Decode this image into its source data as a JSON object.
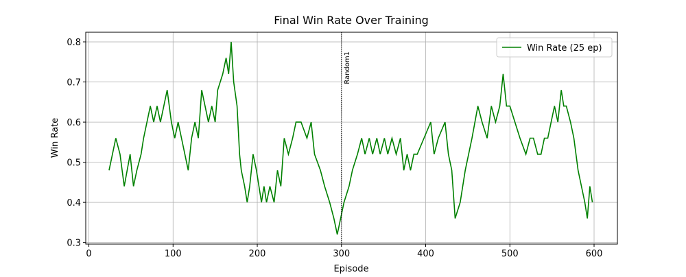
{
  "chart_data": {
    "type": "line",
    "title": "Final Win Rate Over Training",
    "x_label": "Episode",
    "y_label": "Win Rate",
    "x": [
      24,
      28,
      32,
      37,
      42,
      49,
      53,
      57,
      62,
      65,
      69,
      73,
      77,
      81,
      85,
      89,
      93,
      98,
      102,
      106,
      110,
      114,
      118,
      122,
      126,
      130,
      134,
      138,
      142,
      146,
      150,
      153,
      159,
      163,
      166,
      169,
      172,
      176,
      179,
      181,
      185,
      188,
      191,
      195,
      199,
      205,
      208,
      211,
      215,
      220,
      224,
      228,
      232,
      237,
      242,
      246,
      252,
      259,
      264,
      268,
      275,
      280,
      286,
      291,
      295,
      299,
      303,
      309,
      313,
      319,
      324,
      328,
      333,
      337,
      342,
      346,
      351,
      355,
      360,
      365,
      370,
      374,
      378,
      382,
      386,
      390,
      398,
      406,
      410,
      415,
      423,
      427,
      431,
      435,
      441,
      447,
      451,
      455,
      462,
      467,
      473,
      478,
      483,
      488,
      492,
      496,
      500,
      506,
      512,
      519,
      524,
      528,
      533,
      537,
      541,
      545,
      549,
      553,
      557,
      561,
      564,
      567,
      572,
      576,
      581,
      585,
      589,
      592,
      595,
      598
    ],
    "series": [
      {
        "name": "Win Rate (25 ep)",
        "color": "#008000",
        "values": [
          0.48,
          0.52,
          0.56,
          0.52,
          0.44,
          0.52,
          0.44,
          0.48,
          0.52,
          0.56,
          0.6,
          0.64,
          0.6,
          0.64,
          0.6,
          0.64,
          0.68,
          0.6,
          0.56,
          0.6,
          0.56,
          0.52,
          0.48,
          0.56,
          0.6,
          0.56,
          0.68,
          0.64,
          0.6,
          0.64,
          0.6,
          0.68,
          0.72,
          0.76,
          0.72,
          0.8,
          0.7,
          0.64,
          0.52,
          0.48,
          0.44,
          0.4,
          0.44,
          0.52,
          0.48,
          0.4,
          0.44,
          0.4,
          0.44,
          0.4,
          0.48,
          0.44,
          0.56,
          0.52,
          0.56,
          0.6,
          0.6,
          0.56,
          0.6,
          0.52,
          0.48,
          0.44,
          0.4,
          0.36,
          0.32,
          0.36,
          0.4,
          0.44,
          0.48,
          0.52,
          0.56,
          0.52,
          0.56,
          0.52,
          0.56,
          0.52,
          0.56,
          0.52,
          0.56,
          0.52,
          0.56,
          0.48,
          0.52,
          0.48,
          0.52,
          0.52,
          0.56,
          0.6,
          0.52,
          0.56,
          0.6,
          0.52,
          0.48,
          0.36,
          0.4,
          0.48,
          0.52,
          0.56,
          0.64,
          0.6,
          0.56,
          0.64,
          0.6,
          0.64,
          0.72,
          0.64,
          0.64,
          0.6,
          0.56,
          0.52,
          0.56,
          0.56,
          0.52,
          0.52,
          0.56,
          0.56,
          0.6,
          0.64,
          0.6,
          0.68,
          0.64,
          0.64,
          0.6,
          0.56,
          0.48,
          0.44,
          0.4,
          0.36,
          0.44,
          0.4
        ]
      }
    ],
    "vline": {
      "x": 300,
      "label": "Random1"
    },
    "xlim": [
      -3.7,
      627.7
    ],
    "ylim": [
      0.296,
      0.824
    ],
    "xticks": [
      0,
      100,
      200,
      300,
      400,
      500,
      600
    ],
    "yticks": [
      0.3,
      0.4,
      0.5,
      0.6,
      0.7,
      0.8
    ],
    "grid": true,
    "legend": "upper right"
  }
}
